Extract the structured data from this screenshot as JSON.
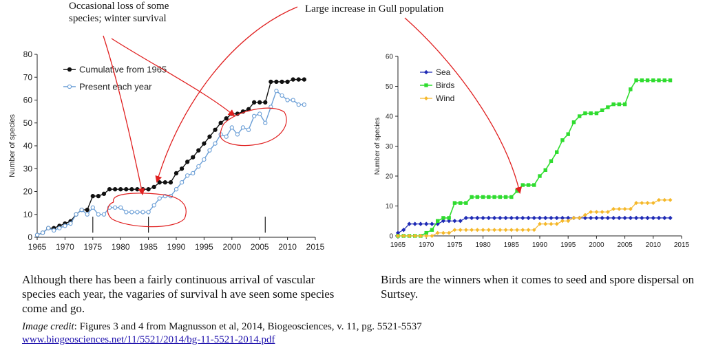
{
  "annotations": {
    "left": "Occasional loss of some species; winter survival",
    "right": "Large increase in Gull population"
  },
  "captions": {
    "left": "Although there has been a fairly continuous arrival of vascular species each year, the vagaries of survival h ave seen some species come and go.",
    "right": "Birds are the winners when it comes to seed and spore dispersal on Surtsey."
  },
  "credit": {
    "label": "Image credit",
    "text": ": Figures 3 and 4 from Magnusson et al, 2014, Biogeosciences, v. 11, pg. 5521-5537",
    "link": "www.biogeosciences.net/11/5521/2014/bg-11-5521-2014.pdf"
  },
  "colors": {
    "cumulative": "#111111",
    "present": "#6a9ed6",
    "sea": "#1f2bb5",
    "birds": "#2fdc2f",
    "wind": "#f5b82a",
    "annotation": "#e02020"
  },
  "chart_data": [
    {
      "type": "line",
      "title": "",
      "xlabel": "",
      "ylabel": "Number of species",
      "xlim": [
        1965,
        2015
      ],
      "ylim": [
        0,
        80
      ],
      "xticks": [
        1965,
        1970,
        1975,
        1980,
        1985,
        1990,
        1995,
        2000,
        2005,
        2010,
        2015
      ],
      "yticks": [
        0,
        10,
        20,
        30,
        40,
        50,
        60,
        70,
        80
      ],
      "legend": "top-left",
      "series": [
        {
          "name": "Cumulative from 1965",
          "x": [
            1965,
            1966,
            1967,
            1968,
            1969,
            1970,
            1971,
            1972,
            1973,
            1974,
            1975,
            1976,
            1977,
            1978,
            1979,
            1980,
            1981,
            1982,
            1983,
            1984,
            1985,
            1986,
            1987,
            1988,
            1989,
            1990,
            1991,
            1992,
            1993,
            1994,
            1995,
            1996,
            1997,
            1998,
            1999,
            2000,
            2001,
            2002,
            2003,
            2004,
            2005,
            2006,
            2007,
            2008,
            2009,
            2010,
            2011,
            2012,
            2013
          ],
          "y": [
            1,
            2,
            4,
            4,
            5,
            6,
            7,
            10,
            12,
            12,
            18,
            18,
            19,
            21,
            21,
            21,
            21,
            21,
            21,
            21,
            21,
            22,
            24,
            24,
            24,
            28,
            30,
            33,
            35,
            38,
            41,
            44,
            47,
            50,
            52,
            54,
            54,
            55,
            56,
            59,
            59,
            59,
            68,
            68,
            68,
            68,
            69,
            69,
            69
          ]
        },
        {
          "name": "Present each year",
          "x": [
            1965,
            1966,
            1967,
            1968,
            1969,
            1970,
            1971,
            1972,
            1973,
            1974,
            1975,
            1976,
            1977,
            1978,
            1979,
            1980,
            1981,
            1982,
            1983,
            1984,
            1985,
            1986,
            1987,
            1988,
            1989,
            1990,
            1991,
            1992,
            1993,
            1994,
            1995,
            1996,
            1997,
            1998,
            1999,
            2000,
            2001,
            2002,
            2003,
            2004,
            2005,
            2006,
            2007,
            2008,
            2009,
            2010,
            2011,
            2012,
            2013
          ],
          "y": [
            1,
            2,
            4,
            3,
            4,
            5,
            6,
            10,
            12,
            10,
            13,
            10,
            10,
            13,
            13,
            13,
            11,
            11,
            11,
            11,
            11,
            14,
            17,
            18,
            18,
            21,
            24,
            27,
            28,
            31,
            34,
            38,
            41,
            45,
            44,
            48,
            45,
            48,
            47,
            53,
            54,
            50,
            57,
            64,
            62,
            60,
            60,
            58,
            58
          ]
        }
      ]
    },
    {
      "type": "line",
      "title": "",
      "xlabel": "",
      "ylabel": "Number of species",
      "xlim": [
        1965,
        2015
      ],
      "ylim": [
        0,
        60
      ],
      "xticks": [
        1965,
        1970,
        1975,
        1980,
        1985,
        1990,
        1995,
        2000,
        2005,
        2010,
        2015
      ],
      "yticks": [
        0,
        10,
        20,
        30,
        40,
        50,
        60
      ],
      "legend": "top-left",
      "series": [
        {
          "name": "Sea",
          "x": [
            1965,
            1966,
            1967,
            1968,
            1969,
            1970,
            1971,
            1972,
            1973,
            1974,
            1975,
            1976,
            1977,
            1978,
            1979,
            1980,
            1981,
            1982,
            1983,
            1984,
            1985,
            1986,
            1987,
            1988,
            1989,
            1990,
            1991,
            1992,
            1993,
            1994,
            1995,
            1996,
            1997,
            1998,
            1999,
            2000,
            2001,
            2002,
            2003,
            2004,
            2005,
            2006,
            2007,
            2008,
            2009,
            2010,
            2011,
            2012,
            2013
          ],
          "y": [
            1,
            2,
            4,
            4,
            4,
            4,
            4,
            4,
            5,
            5,
            5,
            5,
            6,
            6,
            6,
            6,
            6,
            6,
            6,
            6,
            6,
            6,
            6,
            6,
            6,
            6,
            6,
            6,
            6,
            6,
            6,
            6,
            6,
            6,
            6,
            6,
            6,
            6,
            6,
            6,
            6,
            6,
            6,
            6,
            6,
            6,
            6,
            6,
            6
          ]
        },
        {
          "name": "Birds",
          "x": [
            1965,
            1966,
            1967,
            1968,
            1969,
            1970,
            1971,
            1972,
            1973,
            1974,
            1975,
            1976,
            1977,
            1978,
            1979,
            1980,
            1981,
            1982,
            1983,
            1984,
            1985,
            1986,
            1987,
            1988,
            1989,
            1990,
            1991,
            1992,
            1993,
            1994,
            1995,
            1996,
            1997,
            1998,
            1999,
            2000,
            2001,
            2002,
            2003,
            2004,
            2005,
            2006,
            2007,
            2008,
            2009,
            2010,
            2011,
            2012,
            2013
          ],
          "y": [
            0,
            0,
            0,
            0,
            0,
            1,
            2,
            5,
            6,
            6,
            11,
            11,
            11,
            13,
            13,
            13,
            13,
            13,
            13,
            13,
            13,
            15,
            17,
            17,
            17,
            20,
            22,
            25,
            28,
            32,
            34,
            38,
            40,
            41,
            41,
            41,
            42,
            43,
            44,
            44,
            44,
            49,
            52,
            52,
            52,
            52,
            52,
            52,
            52
          ]
        },
        {
          "name": "Wind",
          "x": [
            1965,
            1966,
            1967,
            1968,
            1969,
            1970,
            1971,
            1972,
            1973,
            1974,
            1975,
            1976,
            1977,
            1978,
            1979,
            1980,
            1981,
            1982,
            1983,
            1984,
            1985,
            1986,
            1987,
            1988,
            1989,
            1990,
            1991,
            1992,
            1993,
            1994,
            1995,
            1996,
            1997,
            1998,
            1999,
            2000,
            2001,
            2002,
            2003,
            2004,
            2005,
            2006,
            2007,
            2008,
            2009,
            2010,
            2011,
            2012,
            2013
          ],
          "y": [
            0,
            0,
            0,
            0,
            0,
            0,
            0,
            1,
            1,
            1,
            2,
            2,
            2,
            2,
            2,
            2,
            2,
            2,
            2,
            2,
            2,
            2,
            2,
            2,
            2,
            4,
            4,
            4,
            4,
            5,
            5,
            6,
            6,
            7,
            8,
            8,
            8,
            8,
            9,
            9,
            9,
            9,
            11,
            11,
            11,
            11,
            12,
            12,
            12
          ]
        }
      ]
    }
  ]
}
